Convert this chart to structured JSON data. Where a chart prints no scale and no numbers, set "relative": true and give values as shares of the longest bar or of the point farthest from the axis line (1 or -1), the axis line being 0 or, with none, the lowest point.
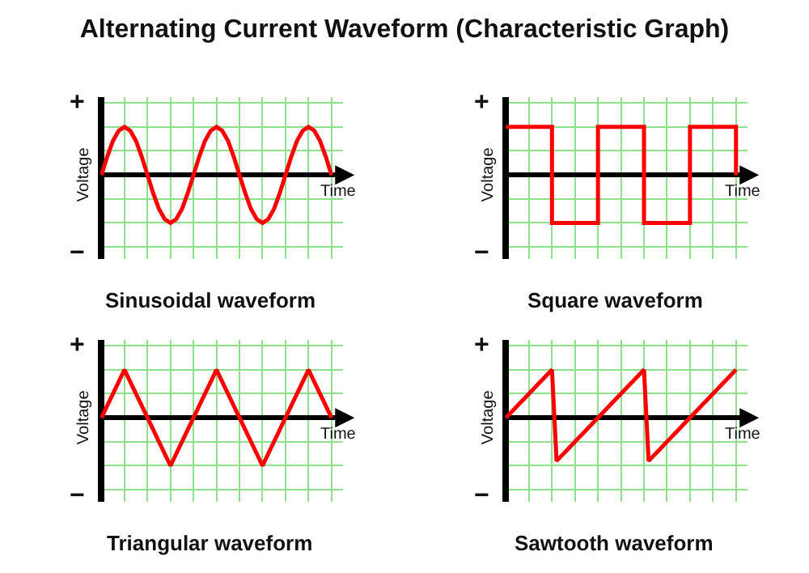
{
  "chart_data": [
    {
      "type": "line",
      "title": "Alternating Current Waveform (Characteristic Graph)",
      "subtitle": "Sinusoidal waveform",
      "xlabel": "Time",
      "ylabel": "Voltage",
      "annotations": [
        "+",
        "−"
      ],
      "relative": true,
      "grid": true,
      "tick_labels": false,
      "categories": [
        null,
        null,
        null,
        null,
        null,
        null,
        null,
        null,
        null,
        null,
        null,
        null,
        null,
        null,
        null,
        null,
        null,
        null,
        null,
        null,
        null,
        null,
        null,
        null,
        null,
        null,
        null,
        null,
        null,
        null,
        null,
        null,
        null,
        null,
        null,
        null,
        null,
        null,
        null,
        null,
        null
      ],
      "series": [
        {
          "color": "#ff0000",
          "values": [
            0,
            0.38,
            0.71,
            0.92,
            1,
            0.92,
            0.71,
            0.38,
            0,
            -0.38,
            -0.71,
            -0.92,
            -1,
            -0.92,
            -0.71,
            -0.38,
            0,
            0.38,
            0.71,
            0.92,
            1,
            0.92,
            0.71,
            0.38,
            0,
            -0.38,
            -0.71,
            -0.92,
            -1,
            -0.92,
            -0.71,
            -0.38,
            0,
            0.38,
            0.71,
            0.92,
            1,
            0.92,
            0.71,
            0.38,
            0
          ]
        }
      ]
    },
    {
      "type": "step",
      "subtitle": "Square waveform",
      "xlabel": "Time",
      "ylabel": "Voltage",
      "annotations": [
        "+",
        "−"
      ],
      "relative": true,
      "grid": true,
      "tick_labels": false,
      "categories": [
        null,
        null,
        null,
        null,
        null,
        null,
        null,
        null,
        null,
        null,
        null
      ],
      "series": [
        {
          "color": "#ff0000",
          "values": [
            1,
            1,
            -1,
            -1,
            1,
            1,
            -1,
            -1,
            1,
            1,
            0
          ]
        }
      ]
    },
    {
      "type": "line",
      "subtitle": "Triangular waveform",
      "xlabel": "Time",
      "ylabel": "Voltage",
      "annotations": [
        "+",
        "−"
      ],
      "relative": true,
      "grid": true,
      "tick_labels": false,
      "categories": [
        null,
        null,
        null,
        null,
        null,
        null,
        null,
        null,
        null,
        null,
        null
      ],
      "series": [
        {
          "color": "#ff0000",
          "values": [
            0,
            1,
            0,
            -1,
            0,
            1,
            0,
            -1,
            0,
            1,
            0
          ]
        }
      ]
    },
    {
      "type": "line",
      "subtitle": "Sawtooth waveform",
      "xlabel": "Time",
      "ylabel": "Voltage",
      "annotations": [
        "+",
        "−"
      ],
      "relative": true,
      "grid": true,
      "tick_labels": false,
      "categories": [
        null,
        null,
        null,
        null,
        null,
        null,
        null,
        null,
        null,
        null,
        null,
        null,
        null,
        null,
        null,
        null,
        null,
        null,
        null,
        null,
        null,
        null,
        null,
        null,
        null,
        null,
        null,
        null,
        null,
        null,
        null,
        null,
        null,
        null,
        null,
        null,
        null,
        null,
        null,
        null,
        null,
        null,
        null,
        null,
        null,
        null,
        null,
        null,
        null,
        null,
        null
      ],
      "series": [
        {
          "color": "#ff0000",
          "values": [
            0,
            0.1,
            0.2,
            0.3,
            0.4,
            0.5,
            0.6,
            0.7,
            0.8,
            0.9,
            1,
            -0.9,
            -0.8,
            -0.7,
            -0.6,
            -0.5,
            -0.4,
            -0.3,
            -0.2,
            -0.1,
            0,
            0.1,
            0.2,
            0.3,
            0.4,
            0.5,
            0.6,
            0.7,
            0.8,
            0.9,
            1,
            -0.9,
            -0.8,
            -0.7,
            -0.6,
            -0.5,
            -0.4,
            -0.3,
            -0.2,
            -0.1,
            0,
            0.1,
            0.2,
            0.3,
            0.4,
            0.5,
            0.6,
            0.7,
            0.8,
            0.9,
            1
          ]
        }
      ]
    }
  ]
}
